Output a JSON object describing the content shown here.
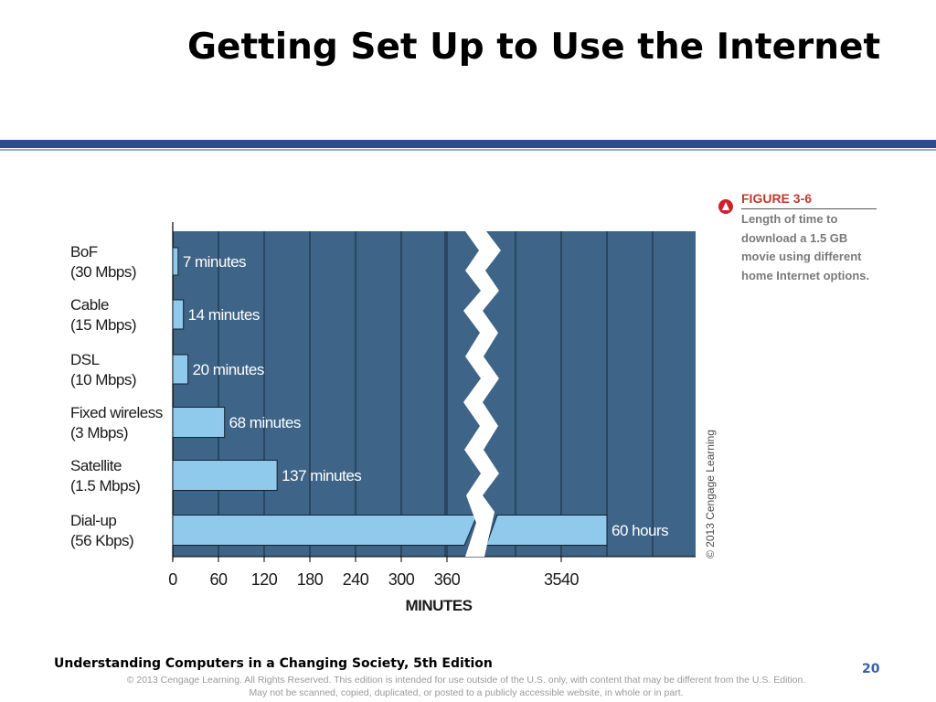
{
  "slide": {
    "title": "Getting Set Up to Use the Internet",
    "page_number": "20"
  },
  "figure": {
    "label": "FIGURE 3-6",
    "caption": "Length of time to download a 1.5 GB movie using different home Internet options.",
    "credit": "© 2013 Cengage Learning"
  },
  "footer": {
    "book_title": "Understanding Computers in a Changing Society, 5th Edition",
    "legal_line_1": "© 2013 Cengage Learning. All Rights Reserved. This edition is intended for use outside of the U.S. only, with content that may be different from the U.S. Edition.",
    "legal_line_2": "May not be scanned, copied, duplicated, or posted to a publicly accessible website, in whole or in part."
  },
  "chart_data": {
    "type": "bar",
    "orientation": "horizontal",
    "title": "",
    "xlabel": "MINUTES",
    "ylabel": "",
    "grid": true,
    "axis_break": [
      400,
      3480
    ],
    "xticks": [
      0,
      60,
      120,
      180,
      240,
      300,
      360,
      3540
    ],
    "categories": [
      {
        "name": "BoF",
        "detail": "(30 Mbps)"
      },
      {
        "name": "Cable",
        "detail": "(15 Mbps)"
      },
      {
        "name": "DSL",
        "detail": "(10 Mbps)"
      },
      {
        "name": "Fixed wireless",
        "detail": "(3 Mbps)"
      },
      {
        "name": "Satellite",
        "detail": "(1.5 Mbps)"
      },
      {
        "name": "Dial-up",
        "detail": "(56 Kbps)"
      }
    ],
    "values": [
      7,
      14,
      20,
      68,
      137,
      3600
    ],
    "data_labels": [
      "7 minutes",
      "14 minutes",
      "20 minutes",
      "68 minutes",
      "137 minutes",
      "60 hours"
    ],
    "colors": {
      "plot_background": "#3e6487",
      "bar_fill": "#8fc9ec",
      "gridline": "#1e3346"
    }
  }
}
